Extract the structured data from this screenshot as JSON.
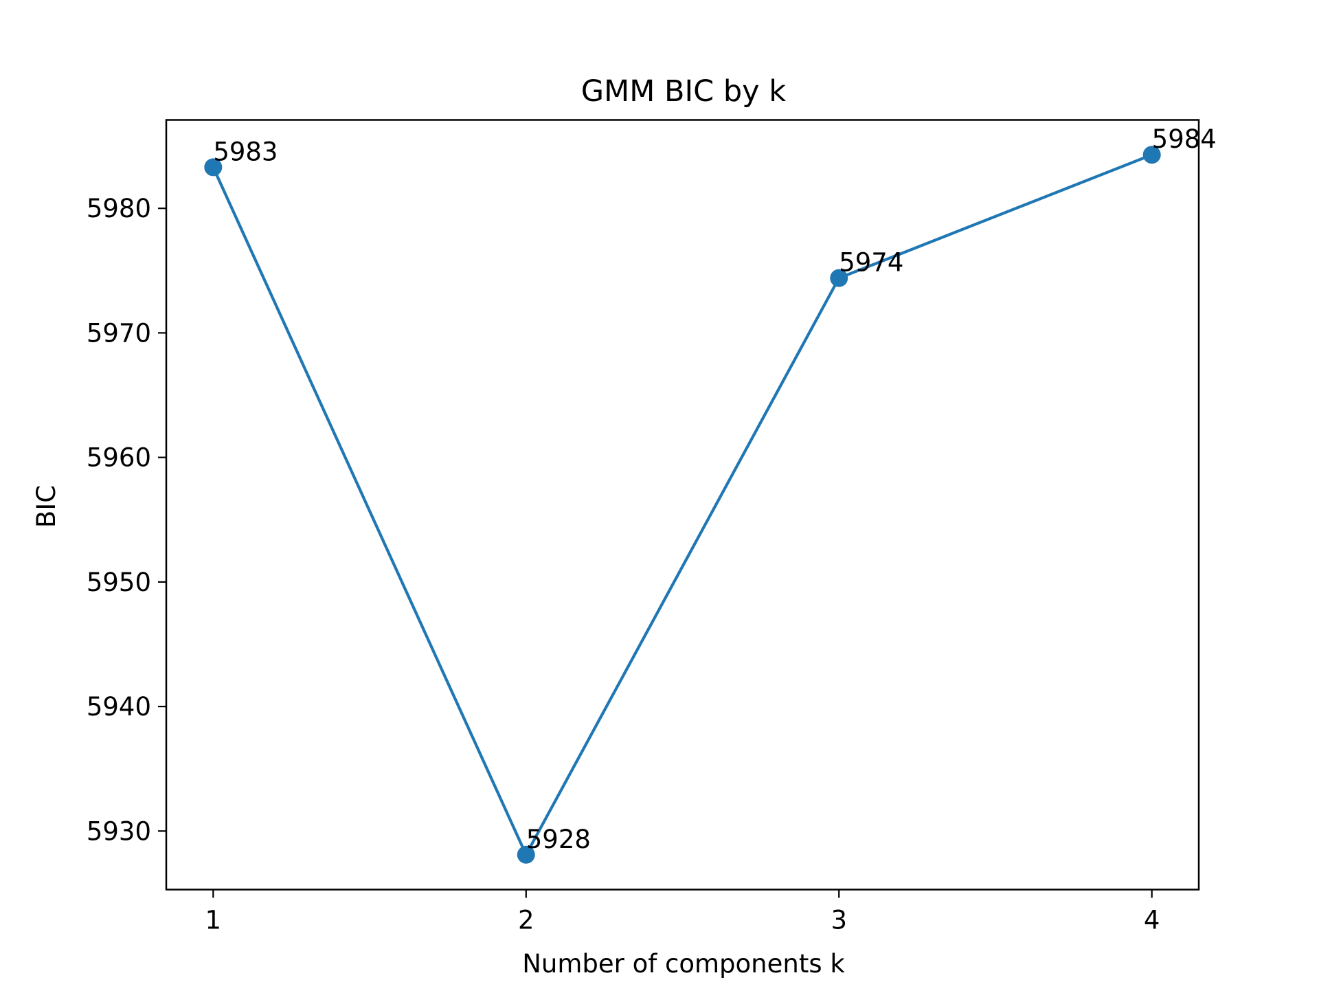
{
  "chart_data": {
    "type": "line",
    "title": "GMM BIC by k",
    "xlabel": "Number of components k",
    "ylabel": "BIC",
    "x": [
      1,
      2,
      3,
      4
    ],
    "series": [
      {
        "values": [
          5983.3,
          5928.1,
          5974.4,
          5984.3
        ],
        "labels": [
          "5983",
          "5928",
          "5974",
          "5984"
        ],
        "color": "#1f77b4",
        "marker": "circle"
      }
    ],
    "xticks": [
      "1",
      "2",
      "3",
      "4"
    ],
    "yticks": [
      "5930",
      "5940",
      "5950",
      "5960",
      "5970",
      "5980"
    ],
    "xlim": [
      0.85,
      4.15
    ],
    "ylim": [
      5925.3,
      5987.1
    ],
    "grid": false,
    "legend": "none"
  }
}
